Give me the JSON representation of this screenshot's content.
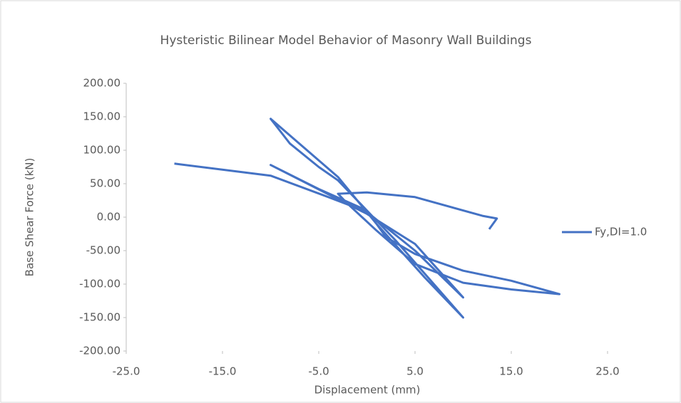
{
  "chart_data": {
    "type": "line",
    "title": "Hysteristic Bilinear Model Behavior of Masonry Wall Buildings",
    "x_label": "Displacement (mm)",
    "y_label": "Base Shear Force (kN)",
    "x": [
      -20,
      -10,
      -4,
      0,
      5,
      10,
      5,
      0,
      -10,
      -5,
      0,
      3,
      10,
      6,
      1,
      -3,
      -10,
      -8,
      -5,
      -3,
      0,
      2,
      5,
      10,
      15,
      20,
      15,
      10,
      5,
      1,
      -2,
      -3,
      0,
      5,
      12,
      13.5,
      12.7
    ],
    "series": [
      {
        "name": "Fy,DI=1.0",
        "color": "#4472c4",
        "values": [
          80,
          62,
          30,
          8,
          -50,
          -120,
          -40,
          5,
          78,
          42,
          10,
          -35,
          -150,
          -90,
          -10,
          60,
          147,
          110,
          75,
          55,
          10,
          -30,
          -55,
          -80,
          -95,
          -115,
          -108,
          -98,
          -70,
          -20,
          20,
          35,
          37,
          30,
          2,
          -2,
          -18
        ]
      }
    ],
    "xlim": [
      -25,
      25
    ],
    "xticks": [
      {
        "value": -25,
        "label": "-25.0"
      },
      {
        "value": -15,
        "label": "-15.0"
      },
      {
        "value": -5,
        "label": "-5.0"
      },
      {
        "value": 5,
        "label": "5.0"
      },
      {
        "value": 15,
        "label": "15.0"
      },
      {
        "value": 25,
        "label": "25.0"
      }
    ],
    "ylim": [
      -200,
      200
    ],
    "yticks": [
      {
        "value": -200,
        "label": "-200.00"
      },
      {
        "value": -150,
        "label": "-150.00"
      },
      {
        "value": -100,
        "label": "-100.00"
      },
      {
        "value": -50,
        "label": "-50.00"
      },
      {
        "value": 0,
        "label": "0.00"
      },
      {
        "value": 50,
        "label": "50.00"
      },
      {
        "value": 100,
        "label": "100.00"
      },
      {
        "value": 150,
        "label": "150.00"
      },
      {
        "value": 200,
        "label": "200.00"
      }
    ],
    "grid": false,
    "legend": "right"
  }
}
